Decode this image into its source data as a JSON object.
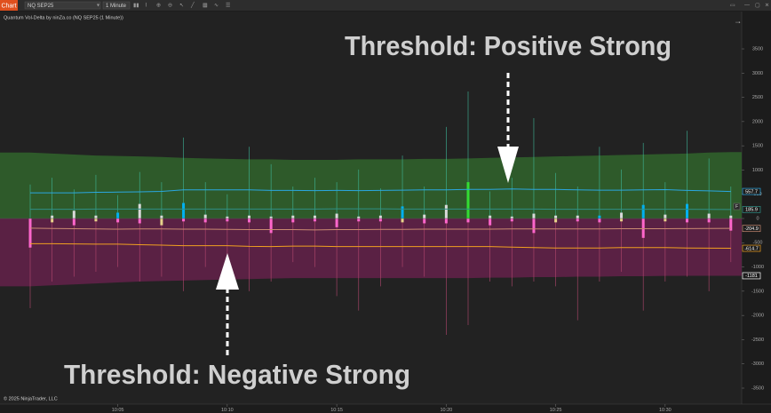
{
  "toolbar": {
    "tab": "Chart",
    "instrument": "NQ SEP25",
    "interval": "1 Minute"
  },
  "chart_data": {
    "type": "bar",
    "indicator_label": "Quantum Vol-Delta by ninZa.co (NQ SEP25 (1 Minute))",
    "copyright": "© 2025 NinjaTrader, LLC",
    "panel_marker": "F",
    "annotations": [
      {
        "text": "Threshold: Positive Strong",
        "color": "#1e9be8"
      },
      {
        "text": "Threshold: Negative Strong",
        "color": "#f5a31a"
      }
    ],
    "categories": [
      null,
      null,
      null,
      null,
      "10:05",
      null,
      null,
      null,
      null,
      "10:10",
      null,
      null,
      null,
      null,
      "10:15",
      null,
      null,
      null,
      null,
      "10:20",
      null,
      null,
      null,
      null,
      "10:25",
      null,
      null,
      null,
      null,
      "10:30",
      null,
      null,
      null
    ],
    "ylim": [
      -3830,
      4270
    ],
    "yticks": [
      -3500,
      -3000,
      -2500,
      -2000,
      -1500,
      -1000,
      -500,
      0,
      500,
      1000,
      1500,
      2000,
      2500,
      3000,
      3500
    ],
    "series": [
      {
        "type": "area",
        "color": "#2e5a2a",
        "values": [
          1360,
          1340,
          1320,
          1300,
          1290,
          1280,
          1270,
          1250,
          1240,
          1230,
          1220,
          1220,
          1210,
          1210,
          1210,
          1220,
          1220,
          1220,
          1230,
          1230,
          1240,
          1250,
          1260,
          1270,
          1280,
          1290,
          1300,
          1310,
          1320,
          1330,
          1340,
          1360,
          1370
        ]
      },
      {
        "type": "area",
        "color": "#5a2144",
        "values": [
          -1400,
          -1380,
          -1360,
          -1340,
          -1320,
          -1300,
          -1290,
          -1280,
          -1270,
          -1260,
          -1250,
          -1240,
          -1230,
          -1230,
          -1230,
          -1230,
          -1230,
          -1230,
          -1230,
          -1230,
          -1230,
          -1220,
          -1220,
          -1210,
          -1210,
          -1200,
          -1200,
          -1190,
          -1190,
          -1185,
          -1183,
          -1182,
          -1181
        ],
        "box_color": "#ffffff"
      },
      {
        "type": "wick",
        "color": "#3fb89a",
        "values": [
          700,
          840,
          600,
          900,
          480,
          960,
          750,
          1670,
          750,
          500,
          1480,
          1120,
          660,
          840,
          750,
          1010,
          620,
          1300,
          660,
          1890,
          2620,
          560,
          840,
          2070,
          940,
          660,
          1480,
          1010,
          1560,
          750,
          1810,
          1240,
          660
        ]
      },
      {
        "type": "wick",
        "color": "#b4486f",
        "values": [
          -1850,
          -1300,
          -1200,
          -1100,
          -1000,
          -1300,
          -1200,
          -1500,
          -1000,
          -1000,
          -1500,
          -1300,
          -900,
          -1000,
          -1600,
          -1900,
          -1400,
          -1000,
          -1200,
          -2400,
          -2200,
          -1300,
          -1400,
          -1300,
          -1400,
          -2100,
          -1300,
          -1100,
          -1900,
          -1300,
          -1200,
          -1500,
          -900
        ]
      },
      {
        "type": "body",
        "color": "#d9d9d9",
        "values": [
          0,
          60,
          160,
          60,
          120,
          300,
          60,
          320,
          80,
          40,
          60,
          40,
          60,
          60,
          100,
          40,
          60,
          250,
          80,
          280,
          750,
          60,
          40,
          100,
          60,
          60,
          60,
          120,
          280,
          80,
          300,
          100,
          60
        ],
        "colors": [
          "#d9d9d9",
          "#d9d9d9",
          "#d9d9d9",
          "#d9d9d9",
          "#00b0f0",
          "#d9d9d9",
          "#d9d9d9",
          "#00b0f0",
          "#d9d9d9",
          "#d9d9d9",
          "#d9d9d9",
          "#d9d9d9",
          "#d9d9d9",
          "#d9d9d9",
          "#d9d9d9",
          "#d9d9d9",
          "#d9d9d9",
          "#00b0f0",
          "#d9d9d9",
          "#d9d9d9",
          "#33dd33",
          "#d9d9d9",
          "#d9d9d9",
          "#d9d9d9",
          "#d9d9d9",
          "#d9d9d9",
          "#00b0f0",
          "#d9d9d9",
          "#00b0f0",
          "#d9d9d9",
          "#00b0f0",
          "#d9d9d9",
          "#d9d9d9"
        ]
      },
      {
        "type": "body",
        "color": "#ff66cc",
        "values": [
          -600,
          -80,
          -140,
          -60,
          -80,
          -100,
          -140,
          -60,
          -80,
          -60,
          -80,
          -300,
          -80,
          -60,
          -180,
          -60,
          -60,
          -80,
          -100,
          -100,
          -80,
          -140,
          -60,
          -300,
          -80,
          -60,
          -80,
          -60,
          -400,
          -60,
          -80,
          -80,
          -250
        ],
        "colors": [
          "#ff66cc",
          "#e6d28a",
          "#ff66cc",
          "#e6d28a",
          "#ff66cc",
          "#ff66cc",
          "#e6d28a",
          "#ff66cc",
          "#ff66cc",
          "#ff66cc",
          "#ff66cc",
          "#ff66cc",
          "#ff66cc",
          "#ff66cc",
          "#ff66cc",
          "#ff66cc",
          "#ff66cc",
          "#e6d28a",
          "#ff66cc",
          "#ff66cc",
          "#ff66cc",
          "#ff66cc",
          "#ff66cc",
          "#ff66cc",
          "#e6d28a",
          "#ff66cc",
          "#ff66cc",
          "#e6d28a",
          "#ff66cc",
          "#e6d28a",
          "#ff66cc",
          "#ff66cc",
          "#ff66cc"
        ]
      },
      {
        "type": "line",
        "color": "#2aa7e0",
        "values": [
          530,
          530,
          530,
          540,
          545,
          550,
          560,
          590,
          590,
          590,
          590,
          580,
          580,
          575,
          580,
          575,
          580,
          585,
          590,
          590,
          600,
          600,
          610,
          600,
          600,
          590,
          585,
          585,
          590,
          595,
          580,
          570,
          557.7
        ]
      },
      {
        "type": "line",
        "color": "#2f8f86",
        "values": [
          190,
          190,
          190,
          195,
          195,
          195,
          195,
          195,
          195,
          195,
          195,
          195,
          195,
          195,
          200,
          200,
          200,
          195,
          195,
          195,
          195,
          195,
          195,
          195,
          190,
          190,
          190,
          190,
          190,
          190,
          190,
          188,
          185.9
        ]
      },
      {
        "type": "line",
        "color": "#c98a72",
        "values": [
          -200,
          -205,
          -210,
          -215,
          -220,
          -215,
          -215,
          -220,
          -220,
          -225,
          -230,
          -230,
          -230,
          -235,
          -230,
          -230,
          -225,
          -225,
          -220,
          -220,
          -220,
          -220,
          -215,
          -215,
          -215,
          -215,
          -215,
          -210,
          -210,
          -210,
          -208,
          -206,
          -204.9
        ]
      },
      {
        "type": "line",
        "color": "#f0a020",
        "values": [
          -520,
          -520,
          -525,
          -530,
          -530,
          -540,
          -550,
          -560,
          -560,
          -560,
          -575,
          -580,
          -570,
          -570,
          -580,
          -580,
          -580,
          -580,
          -580,
          -580,
          -580,
          -580,
          -590,
          -600,
          -610,
          -610,
          -610,
          -600,
          -600,
          -600,
          -610,
          -612,
          -614.7
        ]
      }
    ]
  }
}
